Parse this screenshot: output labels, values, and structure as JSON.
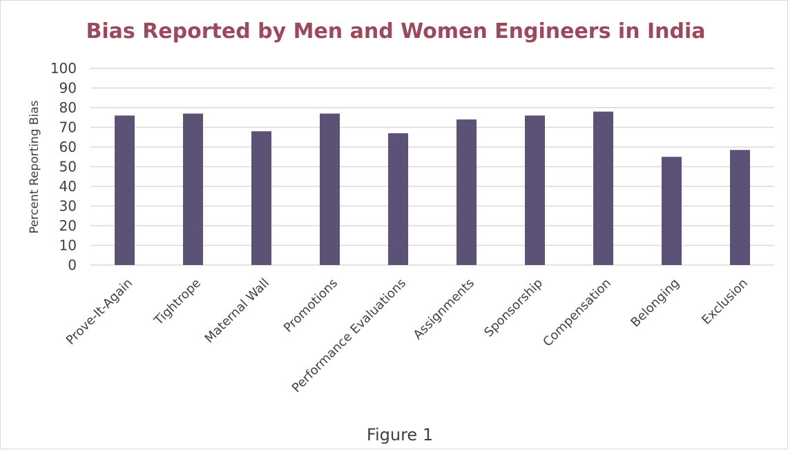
{
  "chart_data": {
    "type": "bar",
    "title": "Bias Reported by Men and Women Engineers in India",
    "xlabel": "",
    "ylabel": "Percent Reporting Bias",
    "categories": [
      "Prove-It-Again",
      "Tightrope",
      "Maternal Wall",
      "Promotions",
      "Performance Evaluations",
      "Assignments",
      "Sponsorship",
      "Compensation",
      "Belonging",
      "Exclusion"
    ],
    "values": [
      76,
      77,
      68,
      77,
      67,
      74,
      76,
      78,
      55,
      58.5
    ],
    "ylim": [
      0,
      100
    ],
    "yticks": [
      0,
      10,
      20,
      30,
      40,
      50,
      60,
      70,
      80,
      90,
      100
    ],
    "grid": true,
    "legend": "none",
    "bar_color": "#5b5275",
    "title_color": "#9b4a5c"
  },
  "caption": "Figure 1"
}
